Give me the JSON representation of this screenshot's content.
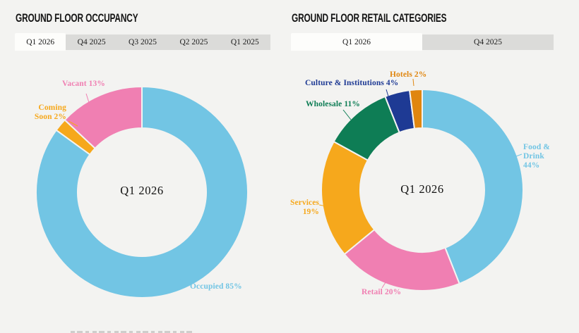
{
  "theme": {
    "background": "#F3F3F1",
    "tab_strip_color": "#DBDBD9",
    "active_tab_color": "#FDFDFB",
    "title_color": "#141414"
  },
  "occupancy_section": {
    "title": "GROUND FLOOR OCCUPANCY",
    "tabs": [
      {
        "label": "Q1 2026",
        "active": true
      },
      {
        "label": "Q4 2025",
        "active": false
      },
      {
        "label": "Q3 2025",
        "active": false
      },
      {
        "label": "Q2 2025",
        "active": false
      },
      {
        "label": "Q1 2025",
        "active": false
      }
    ]
  },
  "retail_section": {
    "title": "GROUND FLOOR RETAIL CATEGORIES",
    "tabs": [
      {
        "label": "Q1 2026",
        "active": true
      },
      {
        "label": "Q4 2025",
        "active": false
      }
    ]
  },
  "chart_data": [
    {
      "type": "pie",
      "subtype": "donut",
      "title": "GROUND FLOOR OCCUPANCY",
      "period": "Q1 2026",
      "center_label": "Q1 2026",
      "start_angle_deg": 0,
      "direction": "clockwise",
      "segments": [
        {
          "label": "Occupied",
          "value_pct": 85,
          "color": "#72C5E4",
          "display": "Occupied 85%"
        },
        {
          "label": "Coming Soon",
          "value_pct": 2,
          "color": "#F6A81C",
          "display": "Coming Soon 2%"
        },
        {
          "label": "Vacant",
          "value_pct": 13,
          "color": "#F07FB2",
          "display": "Vacant 13%"
        }
      ]
    },
    {
      "type": "pie",
      "subtype": "donut",
      "title": "GROUND FLOOR RETAIL CATEGORIES",
      "period": "Q1 2026",
      "center_label": "Q1 2026",
      "start_angle_deg": 0,
      "direction": "clockwise",
      "segments": [
        {
          "label": "Food & Drink",
          "value_pct": 44,
          "color": "#72C5E4",
          "display": "Food & Drink 44%"
        },
        {
          "label": "Retail",
          "value_pct": 20,
          "color": "#F07FB2",
          "display": "Retail 20%"
        },
        {
          "label": "Services",
          "value_pct": 19,
          "color": "#F6A81C",
          "display": "Services 19%"
        },
        {
          "label": "Wholesale",
          "value_pct": 11,
          "color": "#0E7D55",
          "display": "Wholesale 11%"
        },
        {
          "label": "Culture & Institutions",
          "value_pct": 4,
          "color": "#1E3A94",
          "display": "Culture & Institutions 4%"
        },
        {
          "label": "Hotels",
          "value_pct": 2,
          "color": "#E0860F",
          "display": "Hotels 2%"
        }
      ]
    }
  ]
}
